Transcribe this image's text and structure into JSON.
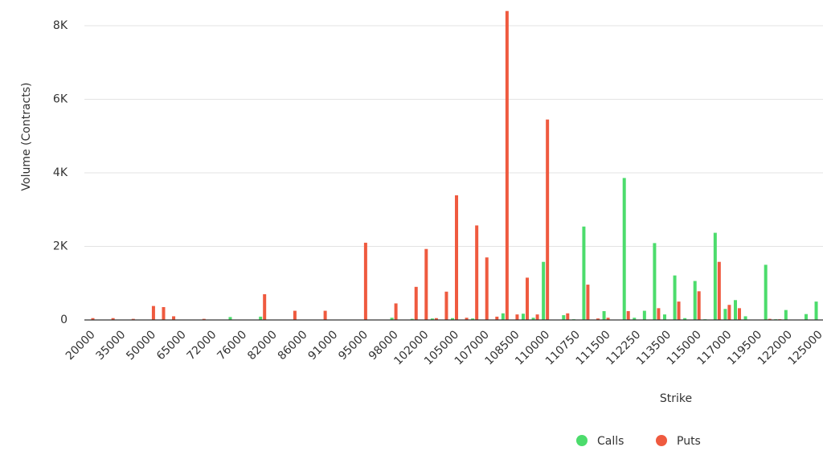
{
  "chart_data": {
    "type": "bar",
    "y_label": "Volume (Contracts)",
    "x_label": "Strike",
    "categories": [
      "20000",
      null,
      null,
      "35000",
      null,
      null,
      "50000",
      null,
      null,
      "65000",
      null,
      null,
      "72000",
      null,
      null,
      "76000",
      null,
      null,
      "82000",
      null,
      null,
      "86000",
      null,
      null,
      "91000",
      null,
      null,
      "95000",
      null,
      null,
      "98000",
      null,
      null,
      "102000",
      null,
      null,
      "105000",
      null,
      null,
      "107000",
      null,
      null,
      "108500",
      null,
      null,
      "110000",
      null,
      null,
      "110750",
      null,
      null,
      "111500",
      null,
      null,
      "112250",
      null,
      null,
      "113500",
      null,
      null,
      "115000",
      null,
      null,
      "117000",
      null,
      null,
      "119500",
      null,
      null,
      "122000",
      null,
      null,
      "125000"
    ],
    "series": [
      {
        "name": "Calls",
        "color": "#4cdc6c",
        "values": [
          0,
          0,
          0,
          0,
          0,
          0,
          0,
          0,
          0,
          0,
          0,
          0,
          0,
          0,
          80,
          0,
          0,
          90,
          0,
          0,
          0,
          0,
          0,
          0,
          0,
          0,
          0,
          0,
          0,
          0,
          60,
          0,
          30,
          0,
          40,
          0,
          50,
          0,
          40,
          0,
          0,
          180,
          0,
          170,
          60,
          1580,
          0,
          130,
          20,
          2540,
          0,
          240,
          0,
          3860,
          60,
          250,
          2090,
          150,
          1210,
          50,
          1060,
          20,
          2370,
          300,
          540,
          100,
          0,
          1500,
          20,
          270,
          0,
          160,
          500
        ]
      },
      {
        "name": "Puts",
        "color": "#ef5a3f",
        "values": [
          50,
          0,
          50,
          0,
          30,
          0,
          380,
          350,
          100,
          0,
          0,
          30,
          0,
          0,
          0,
          0,
          0,
          700,
          0,
          0,
          250,
          0,
          0,
          250,
          0,
          0,
          0,
          2100,
          0,
          0,
          450,
          0,
          900,
          1930,
          50,
          770,
          3390,
          60,
          2570,
          1700,
          90,
          8400,
          150,
          1150,
          150,
          5450,
          0,
          180,
          0,
          960,
          40,
          60,
          0,
          240,
          0,
          0,
          320,
          0,
          500,
          0,
          780,
          0,
          1580,
          410,
          320,
          0,
          0,
          30,
          20,
          0,
          0,
          0,
          0
        ]
      }
    ],
    "ylim": [
      0,
      8400
    ],
    "yticks": [
      0,
      {
        "value": 2000,
        "label": "2K"
      },
      {
        "value": 4000,
        "label": "4K"
      },
      {
        "value": 6000,
        "label": "6K"
      },
      {
        "value": 8000,
        "label": "8K"
      }
    ],
    "grid": true
  }
}
